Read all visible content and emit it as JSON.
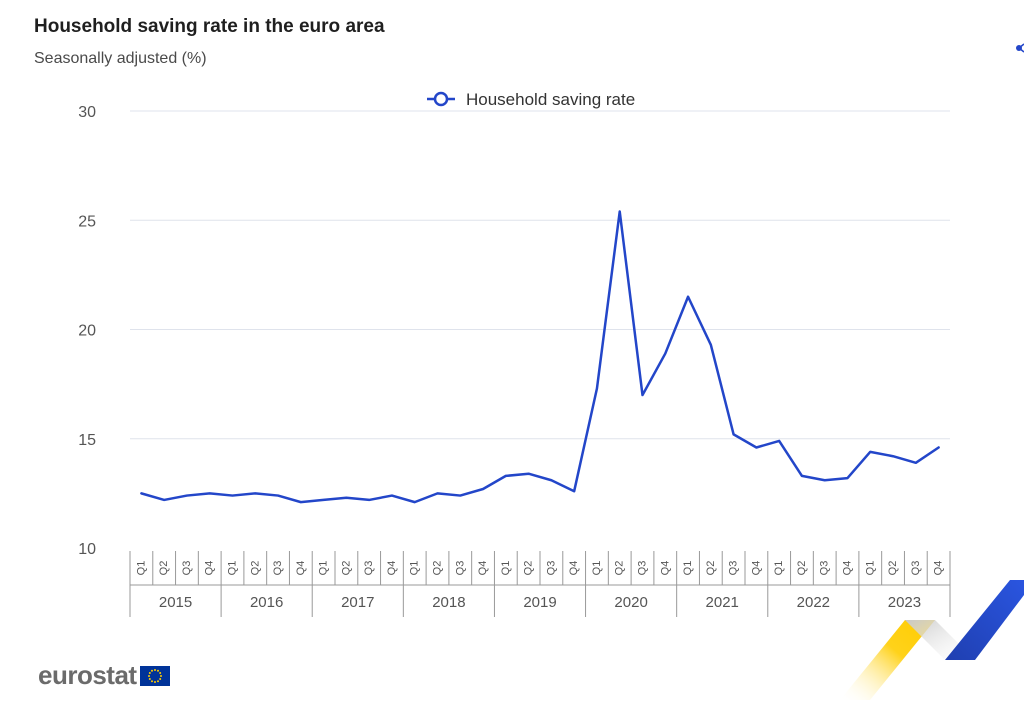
{
  "header": {
    "title": "Household saving rate in the euro area",
    "subtitle": "Seasonally adjusted (%)"
  },
  "footer": {
    "logo_text": "eurostat"
  },
  "colors": {
    "series": "#2346c9",
    "grid": "#dfe3ec",
    "tick_text": "#555555",
    "brand_blue": "#003399",
    "brand_yellow": "#ffcc00"
  },
  "icons": [
    "share-icon",
    "eu-flag-icon"
  ],
  "chart_data": {
    "type": "line",
    "title": "Household saving rate in the euro area",
    "subtitle": "Seasonally adjusted (%)",
    "legend_position": "top-center",
    "grid": true,
    "ylim": [
      10,
      30
    ],
    "yticks": [
      10,
      15,
      20,
      25,
      30
    ],
    "quarter_labels": [
      "Q1",
      "Q2",
      "Q3",
      "Q4"
    ],
    "years": [
      "2015",
      "2016",
      "2017",
      "2018",
      "2019",
      "2020",
      "2021",
      "2022",
      "2023"
    ],
    "series": [
      {
        "name": "Household saving rate",
        "values": [
          12.5,
          12.2,
          12.4,
          12.5,
          12.4,
          12.5,
          12.4,
          12.1,
          12.2,
          12.3,
          12.2,
          12.4,
          12.1,
          12.5,
          12.4,
          12.7,
          13.3,
          13.4,
          13.1,
          12.6,
          17.3,
          25.4,
          17.0,
          18.9,
          21.5,
          19.3,
          15.2,
          14.6,
          14.9,
          13.3,
          13.1,
          13.2,
          14.4,
          14.2,
          13.9,
          14.6
        ]
      }
    ]
  }
}
